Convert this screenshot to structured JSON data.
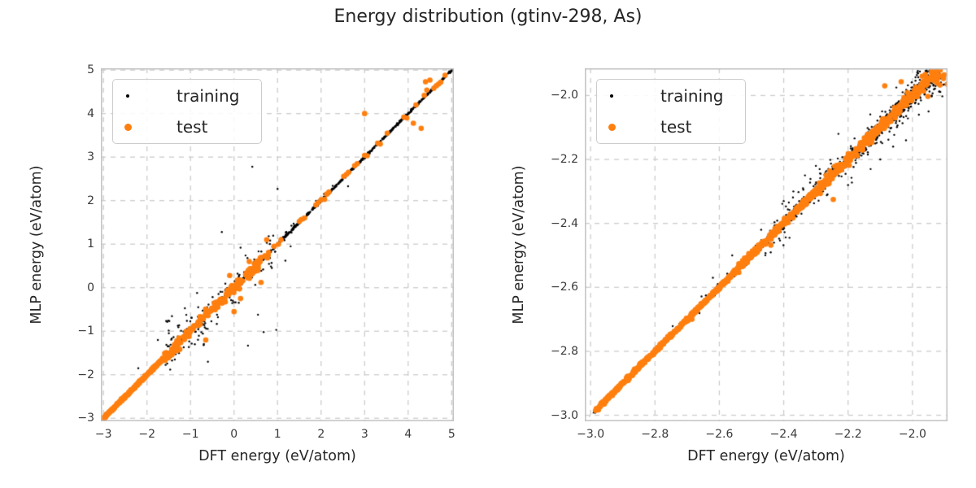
{
  "chart_data": {
    "type": "scatter",
    "title": "Energy distribution (gtinv-298, As)",
    "legend_labels": [
      "training",
      "test"
    ],
    "legend_position": "upper left",
    "grid": true,
    "colors": {
      "training": "#000000",
      "test": "#ff7f0e",
      "grid": "#cccccc",
      "spine": "#c0c0c0",
      "diagonal": "#9a9a9a",
      "text": "#262626",
      "ticks": "#3a3a3a",
      "legend_border": "#cccccc"
    },
    "panels": [
      {
        "key": "left",
        "xlabel": "DFT energy (eV/atom)",
        "ylabel": "MLP energy (eV/atom)",
        "xlim": [
          -3.06,
          5.05
        ],
        "ylim": [
          -3.07,
          5.04
        ],
        "xticks": {
          "values": [
            -3,
            -2,
            -1,
            0,
            1,
            2,
            3,
            4,
            5
          ],
          "labels": [
            "−3",
            "−2",
            "−1",
            "0",
            "1",
            "2",
            "3",
            "4",
            "5"
          ]
        },
        "yticks": {
          "values": [
            5,
            4,
            3,
            2,
            1,
            0,
            -1,
            -2,
            -3
          ],
          "labels": [
            "5",
            "4",
            "3",
            "2",
            "1",
            "0",
            "−1",
            "−2",
            "−3"
          ]
        },
        "diagonal": {
          "x0": -3.03,
          "x1": 5.02
        },
        "series": [
          {
            "name": "training",
            "color_key": "training",
            "marker_radius": 1.2,
            "segments": [
              {
                "kind": "line",
                "x0": -3.02,
                "x1": 5.01,
                "n": 1300,
                "sd": 0.013,
                "seed": 11
              },
              {
                "kind": "line",
                "x0": -1.65,
                "x1": 0.95,
                "n": 120,
                "sd": 0.2,
                "seed": 12
              },
              {
                "kind": "line",
                "x0": -1.65,
                "x1": 0.95,
                "n": 70,
                "sd": 0.07,
                "seed": 13
              },
              {
                "kind": "blob",
                "cx": -1.05,
                "cy": -0.98,
                "sx": 0.3,
                "sy": 0.22,
                "n": 30,
                "seed": 14
              },
              {
                "kind": "line",
                "x0": 1.0,
                "x1": 2.35,
                "n": 45,
                "sd": 0.05,
                "seed": 15
              }
            ],
            "outliers": [
              [
                0.42,
                2.78
              ],
              [
                1.0,
                2.27
              ],
              [
                0.68,
                -1.02
              ],
              [
                0.32,
                -1.33
              ],
              [
                -0.6,
                -1.7
              ],
              [
                0.97,
                -0.97
              ],
              [
                -0.28,
                1.28
              ],
              [
                0.15,
                0.92
              ],
              [
                -1.36,
                -1.65
              ],
              [
                2.62,
                2.33
              ],
              [
                1.18,
                0.62
              ],
              [
                0.55,
                -0.62
              ],
              [
                -0.85,
                -0.12
              ],
              [
                -2.2,
                -1.85
              ],
              [
                1.3,
                0.95
              ],
              [
                -1.75,
                -1.2
              ]
            ]
          },
          {
            "name": "test",
            "color_key": "test",
            "marker_radius": 3.3,
            "segments": [
              {
                "kind": "line",
                "x0": -3.03,
                "x1": -1.6,
                "n": 230,
                "sd": 0.012,
                "seed": 21
              },
              {
                "kind": "line",
                "x0": -1.6,
                "x1": 0.8,
                "n": 150,
                "sd": 0.05,
                "seed": 22
              },
              {
                "kind": "line",
                "x0": -1.45,
                "x1": 0.75,
                "n": 24,
                "sd": 0.11,
                "seed": 23
              }
            ],
            "points": [
              [
                0.92,
                0.95
              ],
              [
                1.02,
                1.0
              ],
              [
                1.08,
                1.1
              ],
              [
                1.5,
                1.52
              ],
              [
                1.55,
                1.57
              ],
              [
                1.62,
                1.6
              ],
              [
                1.88,
                1.9
              ],
              [
                1.93,
                1.95
              ],
              [
                2.0,
                2.02
              ],
              [
                2.08,
                2.03
              ],
              [
                2.13,
                2.15
              ],
              [
                2.18,
                2.2
              ],
              [
                2.52,
                2.56
              ],
              [
                2.58,
                2.6
              ],
              [
                2.63,
                2.65
              ],
              [
                2.77,
                2.8
              ],
              [
                2.83,
                2.85
              ],
              [
                3.0,
                3.04
              ],
              [
                3.06,
                3.03
              ],
              [
                3.3,
                3.32
              ],
              [
                3.36,
                3.3
              ],
              [
                3.52,
                3.55
              ],
              [
                3.9,
                3.92
              ],
              [
                3.97,
                3.9
              ],
              [
                4.18,
                4.2
              ],
              [
                4.4,
                4.73
              ],
              [
                4.5,
                4.77
              ],
              [
                4.59,
                4.58
              ],
              [
                4.43,
                4.54
              ],
              [
                4.65,
                4.64
              ],
              [
                4.37,
                4.42
              ],
              [
                4.7,
                4.68
              ],
              [
                4.75,
                4.72
              ],
              [
                4.85,
                4.88
              ]
            ],
            "outliers": [
              [
                3.0,
                4.0
              ],
              [
                4.12,
                3.78
              ],
              [
                4.3,
                3.66
              ],
              [
                0.62,
                0.12
              ],
              [
                0.15,
                -0.25
              ],
              [
                0.35,
                0.6
              ],
              [
                -0.1,
                0.28
              ],
              [
                0.75,
                1.1
              ],
              [
                -0.65,
                -1.2
              ],
              [
                0.0,
                -0.55
              ]
            ]
          }
        ]
      },
      {
        "key": "right",
        "xlabel": "DFT energy (eV/atom)",
        "ylabel": "MLP energy (eV/atom)",
        "xlim": [
          -3.018,
          -1.891
        ],
        "ylim": [
          -3.019,
          -1.915
        ],
        "xticks": {
          "values": [
            -3.0,
            -2.8,
            -2.6,
            -2.4,
            -2.2,
            -2.0
          ],
          "labels": [
            "−3.0",
            "−2.8",
            "−2.6",
            "−2.4",
            "−2.2",
            "−2.0"
          ]
        },
        "yticks": {
          "values": [
            -2.0,
            -2.2,
            -2.4,
            -2.6,
            -2.8,
            -3.0
          ],
          "labels": [
            "−2.0",
            "−2.2",
            "−2.4",
            "−2.6",
            "−2.8",
            "−3.0"
          ]
        },
        "diagonal": {
          "x0": -3.005,
          "x1": -1.915
        },
        "series": [
          {
            "name": "training",
            "color_key": "training",
            "marker_radius": 1.2,
            "segments": [
              {
                "kind": "line_grow",
                "x0": -2.99,
                "x1": -1.915,
                "n": 1700,
                "sd0": 0.0025,
                "sd1": 0.02,
                "seed": 31
              },
              {
                "kind": "line",
                "x0": -2.46,
                "x1": -1.916,
                "n": 230,
                "sd": 0.03,
                "seed": 32
              },
              {
                "kind": "blob",
                "cx": -1.93,
                "cy": -1.95,
                "sx": 0.025,
                "sy": 0.028,
                "n": 45,
                "seed": 33
              },
              {
                "kind": "line",
                "x0": -2.75,
                "x1": -2.46,
                "n": 40,
                "sd": 0.012,
                "seed": 34
              }
            ],
            "outliers": [
              [
                -2.13,
                -2.23
              ],
              [
                -2.02,
                -2.14
              ],
              [
                -1.98,
                -2.06
              ],
              [
                -2.23,
                -2.12
              ],
              [
                -2.3,
                -2.22
              ],
              [
                -2.05,
                -1.975
              ],
              [
                -1.95,
                -2.05
              ],
              [
                -2.4,
                -2.33
              ],
              [
                -2.37,
                -2.3
              ],
              [
                -2.2,
                -2.28
              ],
              [
                -1.94,
                -2.0
              ],
              [
                -2.47,
                -2.42
              ],
              [
                -2.56,
                -2.5
              ],
              [
                -2.62,
                -2.57
              ],
              [
                -2.1,
                -2.2
              ],
              [
                -2.06,
                -2.16
              ]
            ]
          },
          {
            "name": "test",
            "color_key": "test",
            "marker_radius": 3.3,
            "segments": [
              {
                "kind": "line",
                "x0": -2.985,
                "x1": -2.55,
                "n": 400,
                "sd": 0.003,
                "seed": 41
              },
              {
                "kind": "line",
                "x0": -2.55,
                "x1": -2.3,
                "n": 280,
                "sd": 0.005,
                "seed": 44
              },
              {
                "kind": "line",
                "x0": -2.3,
                "x1": -1.932,
                "n": 280,
                "sd": 0.009,
                "seed": 42
              },
              {
                "kind": "blob",
                "cx": -1.932,
                "cy": -1.942,
                "sx": 0.018,
                "sy": 0.018,
                "n": 25,
                "seed": 43
              }
            ],
            "outliers": [
              [
                -2.086,
                -1.97
              ],
              [
                -2.035,
                -1.957
              ],
              [
                -2.246,
                -2.325
              ],
              [
                -1.952,
                -2.003
              ],
              [
                -2.44,
                -2.468
              ],
              [
                -2.685,
                -2.7
              ]
            ]
          }
        ]
      }
    ]
  }
}
